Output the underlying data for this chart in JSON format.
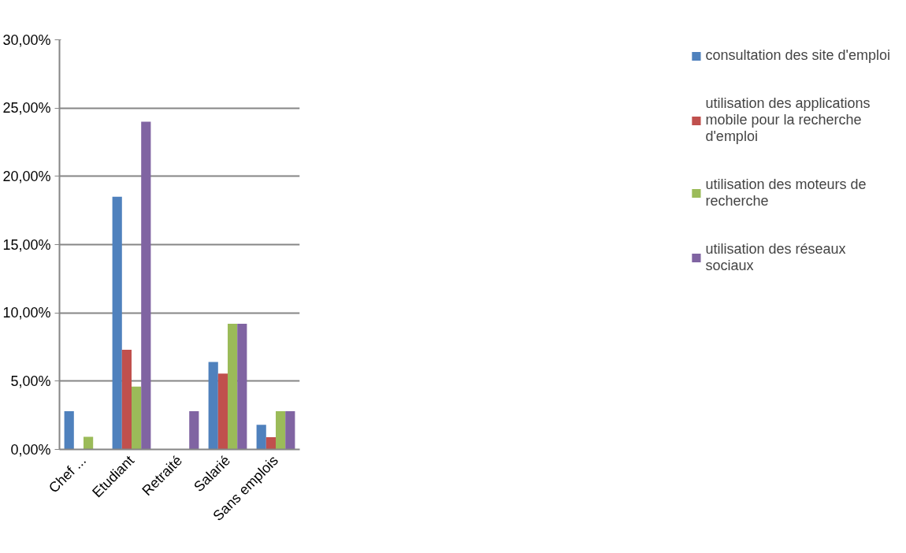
{
  "chart_data": {
    "type": "bar",
    "categories": [
      "Chef ...",
      "Etudiant",
      "Retraité",
      "Salarié",
      "Sans emplois"
    ],
    "series": [
      {
        "name": "consultation des site d'emploi",
        "color": "#4f81bd",
        "values": [
          2.8,
          18.5,
          0,
          6.4,
          1.8
        ]
      },
      {
        "name": "utilisation des applications mobile pour la recherche d'emploi",
        "color": "#c0504d",
        "values": [
          0,
          7.3,
          0,
          5.55,
          0.9
        ]
      },
      {
        "name": "utilisation des moteurs de recherche",
        "color": "#9bbb59",
        "values": [
          0.93,
          4.6,
          0,
          9.2,
          2.8
        ]
      },
      {
        "name": "utilisation des réseaux sociaux",
        "color": "#8064a2",
        "values": [
          0,
          24.0,
          2.8,
          9.2,
          2.8
        ]
      }
    ],
    "ylim": [
      0,
      30
    ],
    "yticks": [
      {
        "value": 0,
        "label": "0,00%"
      },
      {
        "value": 5,
        "label": "5,00%"
      },
      {
        "value": 10,
        "label": "10,00%"
      },
      {
        "value": 15,
        "label": "15,00%"
      },
      {
        "value": 20,
        "label": "20,00%"
      },
      {
        "value": 25,
        "label": "25,00%"
      },
      {
        "value": 30,
        "label": "30,00%"
      }
    ],
    "grid": "y",
    "legend": "right"
  }
}
